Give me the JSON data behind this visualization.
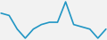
{
  "x": [
    0,
    1,
    2,
    3,
    4,
    5,
    6,
    7,
    8,
    9,
    10,
    11,
    12,
    13
  ],
  "y": [
    28,
    26,
    14,
    6,
    14,
    18,
    20,
    20,
    38,
    18,
    16,
    14,
    6,
    14
  ],
  "line_color": "#2196c4",
  "linewidth": 1.2,
  "background_color": "#f2f2f2"
}
